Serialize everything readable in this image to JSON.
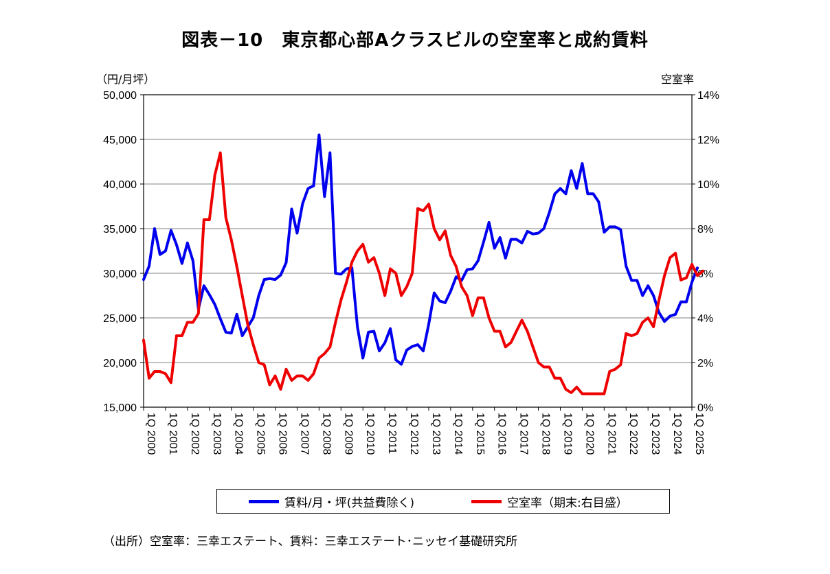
{
  "title": "図表－10　東京都心部Aクラスビルの空室率と成約賃料",
  "left_unit": "（円/月坪）",
  "right_unit": "空室率",
  "legend": {
    "rent": "賃料/月・坪(共益費除く)",
    "vacancy": "空室率（期末:右目盛）"
  },
  "source": "（出所）空室率：三幸エステート、賃料：三幸エステート･ニッセイ基礎研究所",
  "colors": {
    "rent": "#0000ee",
    "vacancy": "#ee0000",
    "grid": "#808080"
  },
  "chart_data": {
    "type": "line",
    "x_start_year": 2000,
    "quarters_per_year": 4,
    "x_tick_labels": [
      "1Q 2000",
      "1Q 2001",
      "1Q 2002",
      "1Q 2003",
      "1Q 2004",
      "1Q 2005",
      "1Q 2006",
      "1Q 2007",
      "1Q 2008",
      "1Q 2009",
      "1Q 2010",
      "1Q 2011",
      "1Q 2012",
      "1Q 2013",
      "1Q 2014",
      "1Q 2015",
      "1Q 2016",
      "1Q 2017",
      "1Q 2018",
      "1Q 2019",
      "1Q 2020",
      "1Q 2021",
      "1Q 2022",
      "1Q 2023",
      "1Q 2024",
      "1Q 2025"
    ],
    "y_left": {
      "min": 15000,
      "max": 50000,
      "step": 5000,
      "tick_labels": [
        "15,000",
        "20,000",
        "25,000",
        "30,000",
        "35,000",
        "40,000",
        "45,000",
        "50,000"
      ]
    },
    "y_right": {
      "min": 0,
      "max": 14,
      "step": 2,
      "tick_labels": [
        "0%",
        "2%",
        "4%",
        "6%",
        "8%",
        "10%",
        "12%",
        "14%"
      ]
    },
    "grid": true,
    "legend_position": "bottom",
    "series": [
      {
        "name": "賃料/月・坪(共益費除く)",
        "axis": "left",
        "values": [
          29300,
          30800,
          35000,
          32100,
          32500,
          34800,
          33200,
          31100,
          33400,
          31400,
          26000,
          28600,
          27600,
          26500,
          24900,
          23400,
          23300,
          25400,
          23000,
          24000,
          25000,
          27500,
          29300,
          29400,
          29300,
          29800,
          31200,
          37200,
          34500,
          37800,
          39500,
          39800,
          45500,
          38600,
          43500,
          30000,
          29900,
          30500,
          30600,
          24000,
          20500,
          23400,
          23500,
          21300,
          22200,
          23800,
          20300,
          19800,
          21400,
          21800,
          22000,
          21300,
          24300,
          27800,
          26900,
          26700,
          28000,
          29600,
          29200,
          30400,
          30500,
          31400,
          33500,
          35700,
          32800,
          34000,
          31700,
          33800,
          33800,
          33400,
          34700,
          34400,
          34500,
          35000,
          36800,
          38900,
          39500,
          38900,
          41500,
          39500,
          42300,
          38900,
          38900,
          38000,
          34600,
          35200,
          35200,
          34900,
          30800,
          29200,
          29200,
          27500,
          28600,
          27500,
          25600,
          24600,
          25200,
          25400,
          26800,
          26800,
          29000,
          30600
        ]
      },
      {
        "name": "空室率（期末:右目盛）",
        "axis": "right",
        "values": [
          3.0,
          1.3,
          1.6,
          1.6,
          1.5,
          1.1,
          3.2,
          3.2,
          3.8,
          3.8,
          4.2,
          8.4,
          8.4,
          10.4,
          11.4,
          8.5,
          7.5,
          6.3,
          5.0,
          3.7,
          2.8,
          2.0,
          1.9,
          1.0,
          1.4,
          0.8,
          1.7,
          1.2,
          1.4,
          1.4,
          1.2,
          1.5,
          2.2,
          2.4,
          2.7,
          3.8,
          4.8,
          5.6,
          6.5,
          7.0,
          7.3,
          6.5,
          6.7,
          6.0,
          5.0,
          6.2,
          6.0,
          5.0,
          5.4,
          6.0,
          8.9,
          8.8,
          9.1,
          8.0,
          7.5,
          7.9,
          6.8,
          6.3,
          5.4,
          5.0,
          4.1,
          4.9,
          4.9,
          4.0,
          3.4,
          3.4,
          2.7,
          2.9,
          3.4,
          3.9,
          3.4,
          2.7,
          2.0,
          1.8,
          1.8,
          1.3,
          1.3,
          0.8,
          0.65,
          0.9,
          0.6,
          0.6,
          0.6,
          0.6,
          0.6,
          1.6,
          1.7,
          1.9,
          3.3,
          3.2,
          3.3,
          3.8,
          4.0,
          3.6,
          4.8,
          5.9,
          6.7,
          6.9,
          5.7,
          5.8,
          6.4,
          5.9,
          6.1
        ]
      }
    ]
  }
}
